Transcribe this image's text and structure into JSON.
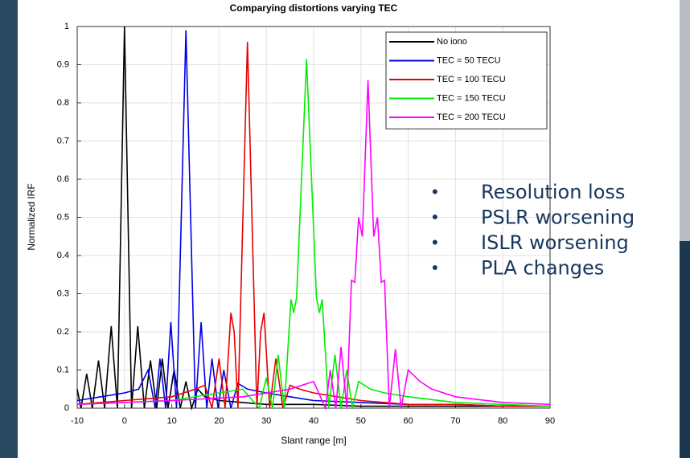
{
  "chart_data": {
    "type": "line",
    "title": "Comparying distortions varying TEC",
    "xlabel": "Slant range [m]",
    "ylabel": "Normalized IRF",
    "xlim": [
      -10,
      90
    ],
    "ylim": [
      0,
      1
    ],
    "xticks": [
      -10,
      0,
      10,
      20,
      30,
      40,
      50,
      60,
      70,
      80,
      90
    ],
    "yticks": [
      0,
      0.1,
      0.2,
      0.3,
      0.4,
      0.5,
      0.6,
      0.7,
      0.8,
      0.9,
      1
    ],
    "grid": true,
    "legend": "upper-right",
    "series": [
      {
        "name": "No iono",
        "color": "#000000",
        "x": [
          -10,
          -9.2,
          -8,
          -6.8,
          -5.5,
          -4.2,
          -2.8,
          -1.5,
          0,
          1.5,
          2.8,
          4.2,
          5.5,
          6.8,
          8,
          9.2,
          10.5,
          11.8,
          13,
          14.2,
          15.5,
          17,
          20,
          25,
          30,
          40,
          50,
          60,
          70,
          80,
          90
        ],
        "values": [
          0.05,
          0,
          0.09,
          0,
          0.125,
          0,
          0.215,
          0,
          1,
          0,
          0.215,
          0,
          0.125,
          0,
          0.13,
          0,
          0.1,
          0,
          0.07,
          0,
          0.05,
          0.03,
          0.02,
          0.015,
          0.01,
          0.01,
          0.005,
          0.005,
          0.005,
          0.005,
          0.005
        ]
      },
      {
        "name": "TEC = 50 TECU",
        "color": "#0000e6",
        "x": [
          -10,
          -5,
          0,
          3,
          5,
          6.5,
          7.5,
          8.7,
          9.8,
          11,
          13,
          15,
          16.2,
          17.4,
          18.5,
          19.8,
          21,
          22.5,
          24,
          26,
          30,
          35,
          40,
          50,
          60,
          70,
          80,
          90
        ],
        "values": [
          0.02,
          0.03,
          0.04,
          0.05,
          0.1,
          0,
          0.13,
          0,
          0.225,
          0,
          0.99,
          0,
          0.225,
          0,
          0.13,
          0,
          0.1,
          0,
          0.065,
          0.05,
          0.04,
          0.03,
          0.02,
          0.015,
          0.01,
          0.01,
          0.005,
          0.005
        ]
      },
      {
        "name": "TEC = 100 TECU",
        "color": "#e60000",
        "x": [
          -10,
          0,
          10,
          15,
          17,
          18.5,
          20,
          21.3,
          22.5,
          23.2,
          24,
          26,
          28,
          28.8,
          29.5,
          30.7,
          32,
          33.5,
          35,
          37,
          40,
          45,
          50,
          60,
          70,
          80,
          90
        ],
        "values": [
          0.01,
          0.02,
          0.03,
          0.05,
          0.06,
          0,
          0.13,
          0,
          0.25,
          0.2,
          0,
          0.96,
          0,
          0.2,
          0.25,
          0,
          0.13,
          0,
          0.06,
          0.05,
          0.04,
          0.03,
          0.02,
          0.01,
          0.01,
          0.005,
          0.005
        ]
      },
      {
        "name": "TEC = 150 TECU",
        "color": "#00ee00",
        "x": [
          -10,
          10,
          20,
          25,
          28.5,
          30,
          31.3,
          32.5,
          33.8,
          35.2,
          35.8,
          36.4,
          38.5,
          40.6,
          41.2,
          41.8,
          43.2,
          44.5,
          45.8,
          47,
          48.2,
          49.5,
          52,
          55,
          60,
          70,
          80,
          90
        ],
        "values": [
          0.01,
          0.02,
          0.04,
          0.05,
          0,
          0.08,
          0,
          0.14,
          0,
          0.285,
          0.25,
          0.29,
          0.915,
          0.29,
          0.25,
          0.285,
          0,
          0.14,
          0,
          0.1,
          0,
          0.07,
          0.05,
          0.04,
          0.03,
          0.015,
          0.01,
          0.005
        ]
      },
      {
        "name": "TEC = 200 TECU",
        "color": "#ff00ff",
        "x": [
          -10,
          10,
          25,
          35,
          40,
          42.5,
          43.5,
          44.7,
          45.8,
          47,
          48,
          48.7,
          49.5,
          50.3,
          51.5,
          52.7,
          53.5,
          54.3,
          55,
          56,
          57.3,
          58.5,
          60,
          62.5,
          65,
          70,
          80,
          90
        ],
        "values": [
          0.01,
          0.02,
          0.03,
          0.05,
          0.07,
          0,
          0.1,
          0,
          0.16,
          0,
          0.335,
          0.33,
          0.5,
          0.45,
          0.86,
          0.45,
          0.5,
          0.33,
          0.335,
          0,
          0.155,
          0,
          0.1,
          0.07,
          0.05,
          0.03,
          0.015,
          0.01
        ]
      }
    ]
  },
  "slide": {
    "bullets": [
      "Resolution loss",
      "PSLR worsening",
      "ISLR worsening",
      "PLA changes"
    ]
  }
}
